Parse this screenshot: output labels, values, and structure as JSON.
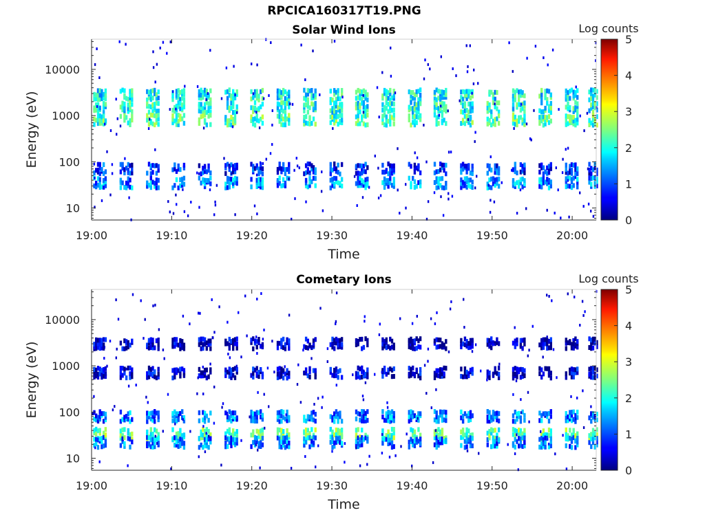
{
  "figure": {
    "title": "RPCICA160317T19.PNG"
  },
  "chart_data": [
    {
      "type": "heatmap",
      "title": "Solar Wind Ions",
      "xlabel": "Time",
      "ylabel": "Energy (eV)",
      "x_ticks": [
        "19:00",
        "19:10",
        "19:20",
        "19:30",
        "19:40",
        "19:50",
        "20:00"
      ],
      "y_ticks": [
        "10",
        "100",
        "1000",
        "10000"
      ],
      "y_scale": "log",
      "ylim": [
        5.5,
        45000
      ],
      "xlim_minutes": [
        0,
        63
      ],
      "colorbar": {
        "label": "Log counts",
        "ticks": [
          "0",
          "1",
          "2",
          "3",
          "4",
          "5"
        ],
        "range": [
          0,
          5
        ],
        "colormap": "jet"
      },
      "sweep_start_minutes": [
        0.2,
        3.5,
        6.8,
        10.0,
        13.3,
        16.6,
        19.8,
        23.1,
        26.4,
        29.7,
        32.9,
        36.2,
        39.5,
        42.7,
        46.0,
        49.3,
        52.5,
        55.8,
        59.1,
        62.0
      ],
      "bands": [
        {
          "energy_eV": 2800,
          "log_counts": 1.9
        },
        {
          "energy_eV": 1500,
          "log_counts": 2.0
        },
        {
          "energy_eV": 800,
          "log_counts": 2.2
        },
        {
          "energy_eV": 35,
          "log_counts": 1.3
        },
        {
          "energy_eV": 70,
          "log_counts": 0.8
        }
      ]
    },
    {
      "type": "heatmap",
      "title": "Cometary Ions",
      "xlabel": "Time",
      "ylabel": "Energy (eV)",
      "x_ticks": [
        "19:00",
        "19:10",
        "19:20",
        "19:30",
        "19:40",
        "19:50",
        "20:00"
      ],
      "y_ticks": [
        "10",
        "100",
        "1000",
        "10000"
      ],
      "y_scale": "log",
      "ylim": [
        5.5,
        45000
      ],
      "xlim_minutes": [
        0,
        63
      ],
      "colorbar": {
        "label": "Log counts",
        "ticks": [
          "0",
          "1",
          "2",
          "3",
          "4",
          "5"
        ],
        "range": [
          0,
          5
        ],
        "colormap": "jet"
      },
      "sweep_start_minutes": [
        0.2,
        3.5,
        6.8,
        10.0,
        13.3,
        16.6,
        19.8,
        23.1,
        26.4,
        29.7,
        32.9,
        36.2,
        39.5,
        42.7,
        46.0,
        49.3,
        52.5,
        55.8,
        59.1,
        62.0
      ],
      "bands": [
        {
          "energy_eV": 3000,
          "log_counts": 0.3
        },
        {
          "energy_eV": 700,
          "log_counts": 0.4
        },
        {
          "energy_eV": 80,
          "log_counts": 1.2
        },
        {
          "energy_eV": 33,
          "log_counts": 2.3
        },
        {
          "energy_eV": 22,
          "log_counts": 1.2
        }
      ]
    }
  ]
}
